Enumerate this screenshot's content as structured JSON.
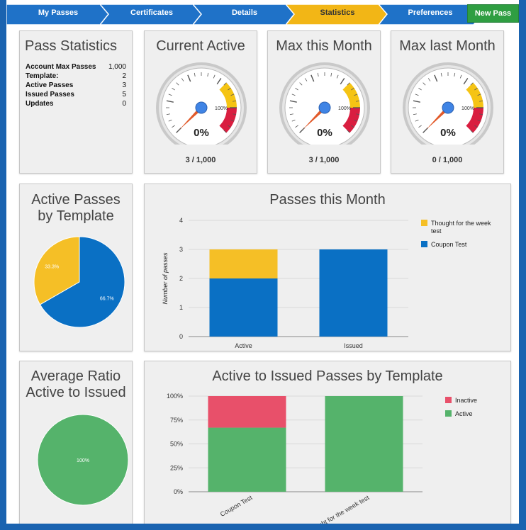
{
  "nav": {
    "steps": [
      {
        "label": "My Passes",
        "color": "#1f72c8"
      },
      {
        "label": "Certificates",
        "color": "#1f72c8"
      },
      {
        "label": "Details",
        "color": "#1f72c8"
      },
      {
        "label": "Statistics",
        "color": "#f2b616"
      },
      {
        "label": "Preferences",
        "color": "#1f72c8"
      }
    ],
    "new_pass": "New Pass"
  },
  "pass_statistics": {
    "title": "Pass Statistics",
    "rows": [
      {
        "label": "Account Max Passes",
        "value": "1,000"
      },
      {
        "label": "Template:",
        "value": "2"
      },
      {
        "label": "Active Passes",
        "value": "3"
      },
      {
        "label": "Issued Passes",
        "value": "5"
      },
      {
        "label": "Updates",
        "value": "0"
      }
    ]
  },
  "gauges": [
    {
      "title": "Current Active",
      "value_pct": 0,
      "readout": "0%",
      "mark": "100%",
      "caption": "3 / 1,000"
    },
    {
      "title": "Max this Month",
      "value_pct": 0,
      "readout": "0%",
      "mark": "100%",
      "caption": "3 / 1,000"
    },
    {
      "title": "Max last Month",
      "value_pct": 0,
      "readout": "0%",
      "mark": "100%",
      "caption": "0 / 1,000"
    }
  ],
  "pie_templates": {
    "title_line1": "Active Passes",
    "title_line2": "by Template"
  },
  "bar_month": {
    "title": "Passes this Month"
  },
  "pie_ratio": {
    "title_line1": "Average Ratio",
    "title_line2": "Active to Issued"
  },
  "bar_ratio": {
    "title": "Active to Issued Passes by Template"
  },
  "colors": {
    "blue": "#0a70c4",
    "yellow": "#f5bf26",
    "green": "#55b36b",
    "red": "#e8506a",
    "gauge_red": "#d91e40",
    "gauge_yellow": "#f5c414"
  },
  "chart_data": [
    {
      "type": "pie",
      "labels": [
        "Thought for the week test",
        "Coupon Test"
      ],
      "values": [
        33.3,
        66.7
      ],
      "slice_labels": [
        "33.3%",
        "66.7%"
      ],
      "colors": [
        "#f5bf26",
        "#0a70c4"
      ]
    },
    {
      "type": "bar",
      "stacked": true,
      "categories": [
        "Active",
        "Issued"
      ],
      "series": [
        {
          "name": "Coupon Test",
          "values": [
            2,
            3
          ],
          "color": "#0a70c4"
        },
        {
          "name": "Thought for the week test",
          "values": [
            1,
            0
          ],
          "color": "#f5bf26"
        }
      ],
      "legend": [
        "Thought for the week test",
        "Coupon Test"
      ],
      "ylabel": "Number of passes",
      "ylim": [
        0,
        4
      ],
      "yticks": [
        "0",
        "1",
        "2",
        "3",
        "4"
      ],
      "grid": true,
      "legend_position": "right"
    },
    {
      "type": "pie",
      "labels": [
        "Active"
      ],
      "values": [
        100
      ],
      "slice_labels": [
        "100%"
      ],
      "colors": [
        "#55b36b"
      ]
    },
    {
      "type": "bar",
      "stacked": true,
      "categories": [
        "Coupon Test",
        "Thought for the week test"
      ],
      "series": [
        {
          "name": "Active",
          "values": [
            67,
            100
          ],
          "color": "#55b36b"
        },
        {
          "name": "Inactive",
          "values": [
            33,
            0
          ],
          "color": "#e8506a"
        }
      ],
      "legend": [
        "Inactive",
        "Active"
      ],
      "ylim": [
        0,
        100
      ],
      "yticks": [
        "0%",
        "25%",
        "50%",
        "75%",
        "100%"
      ],
      "grid": true,
      "legend_position": "right"
    }
  ]
}
